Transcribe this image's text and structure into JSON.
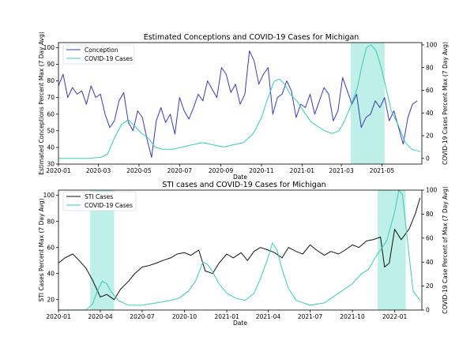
{
  "colors": {
    "conception": "#3b3bad",
    "covid": "#3cc9b4",
    "sti": "#111111",
    "shade": "#a8eae0"
  },
  "chart_data": [
    {
      "type": "line",
      "title": "Estimated Conceptions and COVID-19 Cases for Michigan",
      "xlabel": "Date",
      "ylabel": "Estimated Conceptions Percent Max (7 Day Avg)",
      "y2label": "COVID-19 Cases Percent Max (7 Day Avg)",
      "xlim": [
        "2020-01-01",
        "2021-06-30"
      ],
      "ylim": [
        30,
        103
      ],
      "y2lim": [
        -5,
        102
      ],
      "xticks": [
        "2020-01",
        "2020-03",
        "2020-05",
        "2020-07",
        "2020-09",
        "2020-11",
        "2021-01",
        "2021-03",
        "2021-05"
      ],
      "yticks": [
        "30",
        "40",
        "50",
        "60",
        "70",
        "80",
        "90",
        "100"
      ],
      "y2ticks": [
        "0",
        "20",
        "40",
        "60",
        "80",
        "100"
      ],
      "legend": {
        "placement": "top-left",
        "entries": [
          "Conception",
          "COVID-19 Cases"
        ]
      },
      "shaded_range": [
        "2021-03-15",
        "2021-05-05"
      ],
      "series": [
        {
          "name": "Conception",
          "axis": "left",
          "x": [
            "2020-01-01",
            "2020-01-08",
            "2020-01-15",
            "2020-01-22",
            "2020-01-29",
            "2020-02-05",
            "2020-02-12",
            "2020-02-19",
            "2020-02-26",
            "2020-03-04",
            "2020-03-11",
            "2020-03-18",
            "2020-03-25",
            "2020-04-01",
            "2020-04-08",
            "2020-04-15",
            "2020-04-22",
            "2020-04-29",
            "2020-05-06",
            "2020-05-13",
            "2020-05-20",
            "2020-05-27",
            "2020-06-03",
            "2020-06-10",
            "2020-06-17",
            "2020-06-24",
            "2020-07-01",
            "2020-07-08",
            "2020-07-15",
            "2020-07-22",
            "2020-07-29",
            "2020-08-05",
            "2020-08-12",
            "2020-08-19",
            "2020-08-26",
            "2020-09-02",
            "2020-09-09",
            "2020-09-16",
            "2020-09-23",
            "2020-09-30",
            "2020-10-07",
            "2020-10-14",
            "2020-10-21",
            "2020-10-28",
            "2020-11-04",
            "2020-11-11",
            "2020-11-18",
            "2020-11-25",
            "2020-12-02",
            "2020-12-09",
            "2020-12-16",
            "2020-12-23",
            "2020-12-30",
            "2021-01-06",
            "2021-01-13",
            "2021-01-20",
            "2021-01-27",
            "2021-02-03",
            "2021-02-10",
            "2021-02-17",
            "2021-02-24",
            "2021-03-03",
            "2021-03-10",
            "2021-03-17",
            "2021-03-24",
            "2021-03-31",
            "2021-04-07",
            "2021-04-14",
            "2021-04-21",
            "2021-04-28",
            "2021-05-05",
            "2021-05-12",
            "2021-05-19",
            "2021-05-26",
            "2021-06-02",
            "2021-06-09",
            "2021-06-16",
            "2021-06-23"
          ],
          "values": [
            77,
            84,
            70,
            76,
            72,
            74,
            66,
            77,
            70,
            72,
            60,
            52,
            56,
            68,
            73,
            55,
            50,
            62,
            58,
            45,
            34,
            56,
            64,
            55,
            60,
            48,
            70,
            62,
            57,
            64,
            72,
            68,
            80,
            75,
            70,
            88,
            84,
            73,
            78,
            66,
            72,
            98,
            92,
            78,
            84,
            88,
            60,
            70,
            72,
            80,
            74,
            58,
            66,
            64,
            72,
            60,
            68,
            76,
            72,
            56,
            62,
            82,
            74,
            66,
            72,
            52,
            58,
            60,
            68,
            64,
            70,
            56,
            62,
            52,
            42,
            58,
            66,
            68
          ]
        },
        {
          "name": "COVID-19 Cases",
          "axis": "right",
          "x": [
            "2020-01-01",
            "2020-02-15",
            "2020-03-05",
            "2020-03-15",
            "2020-03-25",
            "2020-04-05",
            "2020-04-15",
            "2020-04-25",
            "2020-05-05",
            "2020-05-15",
            "2020-05-25",
            "2020-06-05",
            "2020-06-20",
            "2020-07-05",
            "2020-07-20",
            "2020-08-05",
            "2020-08-20",
            "2020-09-05",
            "2020-09-20",
            "2020-10-05",
            "2020-10-20",
            "2020-11-01",
            "2020-11-10",
            "2020-11-20",
            "2020-11-28",
            "2020-12-05",
            "2020-12-15",
            "2020-12-25",
            "2021-01-05",
            "2021-01-15",
            "2021-01-25",
            "2021-02-05",
            "2021-02-15",
            "2021-02-25",
            "2021-03-05",
            "2021-03-15",
            "2021-03-25",
            "2021-04-01",
            "2021-04-08",
            "2021-04-15",
            "2021-04-22",
            "2021-04-30",
            "2021-05-08",
            "2021-05-15",
            "2021-05-25",
            "2021-06-05",
            "2021-06-15",
            "2021-06-28"
          ],
          "values": [
            0,
            0,
            1,
            4,
            18,
            30,
            34,
            28,
            22,
            18,
            10,
            8,
            8,
            10,
            12,
            14,
            12,
            10,
            12,
            14,
            22,
            36,
            52,
            68,
            70,
            66,
            56,
            50,
            40,
            32,
            28,
            24,
            22,
            24,
            32,
            46,
            62,
            82,
            98,
            100,
            95,
            80,
            60,
            42,
            30,
            14,
            8,
            6
          ]
        }
      ]
    },
    {
      "type": "line",
      "title": "STI cases and COVID-19 Cases for Michigan",
      "xlabel": "Date",
      "ylabel": "STI Cases Percent Max (7 Day Avg)",
      "y2label": "COVID-19 Case Percent of Max (7 Day Avg)",
      "xlim": [
        "2020-01-01",
        "2022-03-01"
      ],
      "ylim": [
        12,
        104
      ],
      "y2lim": [
        0,
        100
      ],
      "xticks": [
        "2020-01",
        "2020-04",
        "2020-07",
        "2020-10",
        "2021-01",
        "2021-04",
        "2021-07",
        "2021-10",
        "2022-01"
      ],
      "yticks": [
        "20",
        "40",
        "60",
        "80",
        "100"
      ],
      "y2ticks": [
        "0",
        "20",
        "40",
        "60",
        "80",
        "100"
      ],
      "legend": {
        "placement": "top-left",
        "entries": [
          "STI Cases",
          "COVID-19 Cases"
        ]
      },
      "shaded_ranges": [
        [
          "2020-03-10",
          "2020-05-01"
        ],
        [
          "2021-11-25",
          "2022-01-25"
        ]
      ],
      "series": [
        {
          "name": "STI Cases",
          "axis": "left",
          "x": [
            "2020-01-01",
            "2020-01-15",
            "2020-02-01",
            "2020-02-15",
            "2020-03-01",
            "2020-03-15",
            "2020-04-01",
            "2020-04-15",
            "2020-05-01",
            "2020-05-15",
            "2020-06-01",
            "2020-06-15",
            "2020-07-01",
            "2020-07-15",
            "2020-08-01",
            "2020-08-15",
            "2020-09-01",
            "2020-09-15",
            "2020-10-01",
            "2020-10-15",
            "2020-11-01",
            "2020-11-15",
            "2020-12-01",
            "2020-12-15",
            "2021-01-01",
            "2021-01-15",
            "2021-02-01",
            "2021-02-15",
            "2021-03-01",
            "2021-03-15",
            "2021-04-01",
            "2021-04-15",
            "2021-05-01",
            "2021-05-15",
            "2021-06-01",
            "2021-06-15",
            "2021-07-01",
            "2021-07-15",
            "2021-08-01",
            "2021-08-15",
            "2021-09-01",
            "2021-09-15",
            "2021-10-01",
            "2021-10-15",
            "2021-11-01",
            "2021-11-15",
            "2021-12-01",
            "2021-12-10",
            "2021-12-20",
            "2022-01-01",
            "2022-01-15",
            "2022-02-01",
            "2022-02-15",
            "2022-02-25"
          ],
          "values": [
            48,
            52,
            55,
            50,
            44,
            35,
            22,
            24,
            20,
            28,
            34,
            40,
            45,
            46,
            48,
            50,
            52,
            55,
            56,
            54,
            58,
            42,
            40,
            48,
            55,
            52,
            56,
            50,
            57,
            60,
            58,
            56,
            52,
            60,
            57,
            55,
            62,
            58,
            54,
            57,
            55,
            58,
            62,
            60,
            65,
            66,
            68,
            45,
            48,
            74,
            66,
            74,
            86,
            98
          ]
        },
        {
          "name": "COVID-19 Cases",
          "axis": "right",
          "x": [
            "2020-01-01",
            "2020-03-01",
            "2020-03-15",
            "2020-03-25",
            "2020-04-05",
            "2020-04-15",
            "2020-04-25",
            "2020-05-10",
            "2020-06-01",
            "2020-07-01",
            "2020-08-01",
            "2020-09-01",
            "2020-09-20",
            "2020-10-10",
            "2020-10-25",
            "2020-11-10",
            "2020-11-20",
            "2020-12-01",
            "2020-12-15",
            "2021-01-01",
            "2021-01-20",
            "2021-02-10",
            "2021-03-01",
            "2021-03-15",
            "2021-03-30",
            "2021-04-10",
            "2021-04-20",
            "2021-05-01",
            "2021-05-15",
            "2021-06-01",
            "2021-07-01",
            "2021-08-01",
            "2021-09-01",
            "2021-10-01",
            "2021-10-20",
            "2021-11-05",
            "2021-11-20",
            "2021-12-01",
            "2021-12-15",
            "2022-01-01",
            "2022-01-10",
            "2022-01-18",
            "2022-01-28",
            "2022-02-10",
            "2022-02-25"
          ],
          "values": [
            0,
            0,
            5,
            15,
            24,
            22,
            15,
            8,
            4,
            4,
            6,
            8,
            10,
            16,
            24,
            40,
            38,
            32,
            22,
            14,
            10,
            8,
            14,
            26,
            42,
            56,
            50,
            34,
            18,
            8,
            4,
            6,
            14,
            22,
            30,
            34,
            44,
            50,
            58,
            82,
            100,
            96,
            60,
            16,
            8
          ]
        }
      ]
    }
  ]
}
